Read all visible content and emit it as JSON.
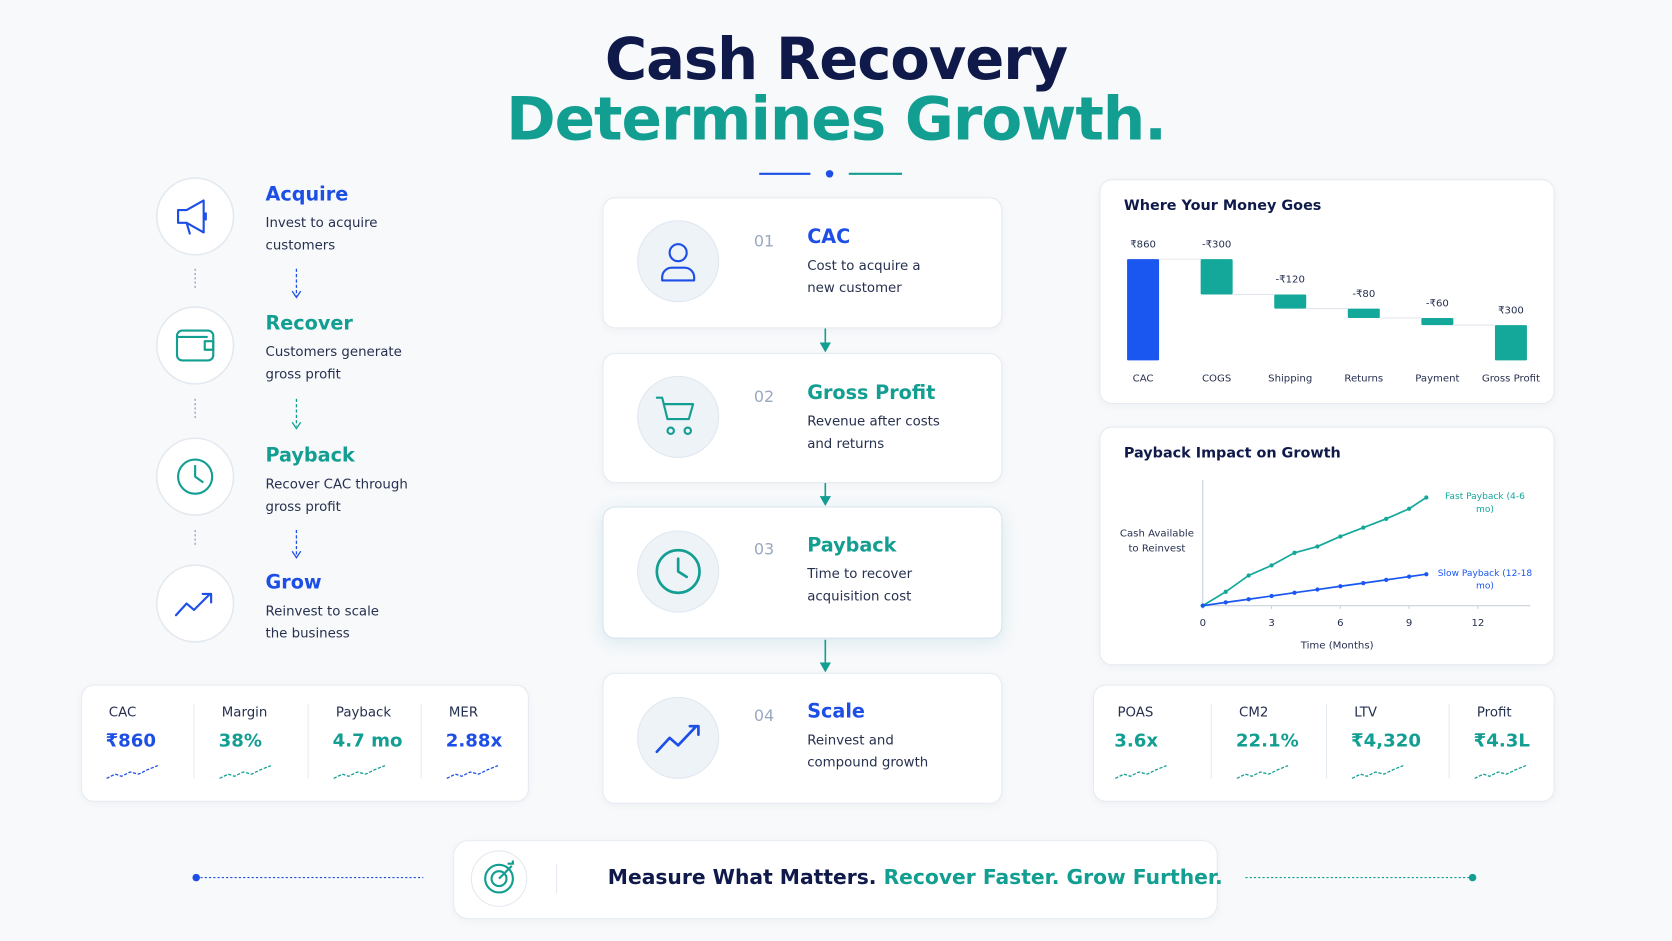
{
  "header": {
    "title_line1": "Cash Recovery",
    "title_line2": "Determines Growth."
  },
  "left_steps": [
    {
      "title": "Acquire",
      "desc": "Invest to acquire customers"
    },
    {
      "title": "Recover",
      "desc": "Customers generate gross profit"
    },
    {
      "title": "Payback",
      "desc": "Recover CAC through gross profit"
    },
    {
      "title": "Grow",
      "desc": "Reinvest to scale the business"
    }
  ],
  "center_steps": [
    {
      "number": "01",
      "title": "CAC",
      "desc": "Cost to acquire a new customer"
    },
    {
      "number": "02",
      "title": "Gross Profit",
      "desc": "Revenue after costs and returns"
    },
    {
      "number": "03",
      "title": "Payback",
      "desc": "Time to recover acquisition cost"
    },
    {
      "number": "04",
      "title": "Scale",
      "desc": "Reinvest and compound growth"
    }
  ],
  "kpis_left": [
    {
      "label": "CAC",
      "value": "₹860"
    },
    {
      "label": "Margin",
      "value": "38%"
    },
    {
      "label": "Payback",
      "value": "4.7 mo"
    },
    {
      "label": "MER",
      "value": "2.88x"
    }
  ],
  "kpis_right": [
    {
      "label": "POAS",
      "value": "3.6x"
    },
    {
      "label": "CM2",
      "value": "22.1%"
    },
    {
      "label": "LTV",
      "value": "₹4,320"
    },
    {
      "label": "Profit",
      "value": "₹4.3L"
    }
  ],
  "footer": {
    "text_dark": "Measure What Matters.",
    "text_teal": "Recover Faster. Grow Further."
  },
  "chart_data": [
    {
      "type": "waterfall",
      "title": "Where Your Money Goes",
      "categories": [
        "CAC",
        "COGS",
        "Shipping",
        "Returns",
        "Payment",
        "Gross Profit"
      ],
      "values": [
        860,
        -300,
        -120,
        -80,
        -60,
        300
      ],
      "value_labels": [
        "₹860",
        "-₹300",
        "-₹120",
        "-₹80",
        "-₹60",
        "₹300"
      ],
      "colors": [
        "#1a56f0",
        "#14a89a",
        "#14a89a",
        "#14a89a",
        "#14a89a",
        "#14a89a"
      ]
    },
    {
      "type": "line",
      "title": "Payback Impact on Growth",
      "xlabel": "Time (Months)",
      "ylabel": "Cash Available to Reinvest",
      "x": [
        0,
        1,
        2,
        3,
        4,
        5,
        6,
        7,
        8,
        9,
        9.75
      ],
      "series": [
        {
          "name": "Fast Payback (4-6 mo)",
          "color": "#14a89a",
          "values": [
            0,
            11,
            24,
            32,
            42,
            47,
            55,
            62,
            69,
            77,
            86
          ]
        },
        {
          "name": "Slow Payback (12-18 mo)",
          "color": "#1a56f0",
          "values": [
            0,
            2.6,
            5.1,
            7.7,
            10.3,
            12.8,
            15.4,
            17.9,
            20.5,
            23.1,
            25
          ]
        }
      ],
      "xlim": [
        0,
        14
      ],
      "xticks": [
        0,
        3,
        6,
        9,
        12
      ],
      "ylim": [
        0,
        100
      ]
    }
  ]
}
